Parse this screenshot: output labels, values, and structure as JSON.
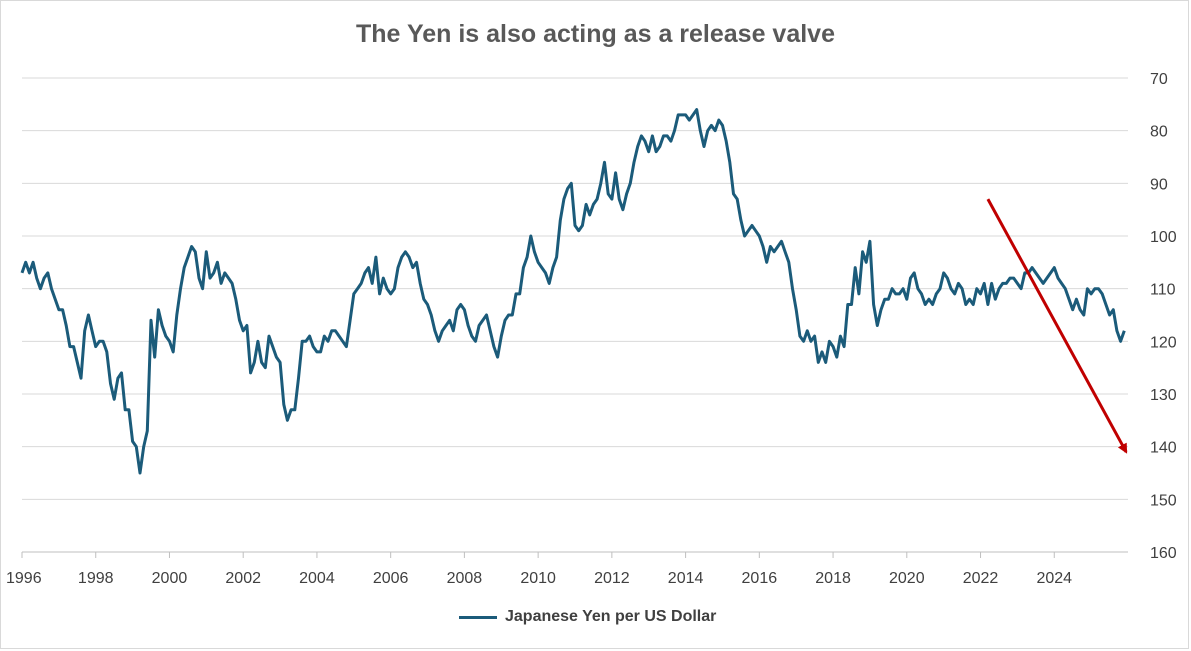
{
  "chart_data": {
    "type": "line",
    "title": "The Yen is also acting as a release valve",
    "xlabel": "",
    "ylabel": "",
    "y_axis_side": "right",
    "y_inverted": true,
    "ylim": [
      70,
      160
    ],
    "y_ticks": [
      70,
      80,
      90,
      100,
      110,
      120,
      130,
      140,
      150,
      160
    ],
    "xlim": [
      1996,
      2026
    ],
    "x_ticks": [
      1996,
      1998,
      2000,
      2002,
      2004,
      2006,
      2008,
      2010,
      2012,
      2014,
      2016,
      2018,
      2020,
      2022,
      2024
    ],
    "grid": "horizontal",
    "legend_position": "bottom-center",
    "series": [
      {
        "name": "Japanese Yen per US Dollar",
        "color": "#1b5b7a",
        "points": [
          [
            1996.0,
            107
          ],
          [
            1996.1,
            105
          ],
          [
            1996.2,
            107
          ],
          [
            1996.3,
            105
          ],
          [
            1996.4,
            108
          ],
          [
            1996.5,
            110
          ],
          [
            1996.6,
            108
          ],
          [
            1996.7,
            107
          ],
          [
            1996.8,
            110
          ],
          [
            1996.9,
            112
          ],
          [
            1997.0,
            114
          ],
          [
            1997.1,
            114
          ],
          [
            1997.2,
            117
          ],
          [
            1997.3,
            121
          ],
          [
            1997.4,
            121
          ],
          [
            1997.5,
            124
          ],
          [
            1997.6,
            127
          ],
          [
            1997.7,
            118
          ],
          [
            1997.8,
            115
          ],
          [
            1997.9,
            118
          ],
          [
            1998.0,
            121
          ],
          [
            1998.1,
            120
          ],
          [
            1998.2,
            120
          ],
          [
            1998.3,
            122
          ],
          [
            1998.4,
            128
          ],
          [
            1998.5,
            131
          ],
          [
            1998.6,
            127
          ],
          [
            1998.7,
            126
          ],
          [
            1998.8,
            133
          ],
          [
            1998.9,
            133
          ],
          [
            1999.0,
            139
          ],
          [
            1999.1,
            140
          ],
          [
            1999.2,
            145
          ],
          [
            1999.3,
            140
          ],
          [
            1999.4,
            137
          ],
          [
            1999.5,
            116
          ],
          [
            1999.6,
            123
          ],
          [
            1999.7,
            114
          ],
          [
            1999.8,
            117
          ],
          [
            1999.9,
            119
          ],
          [
            2000.0,
            120
          ],
          [
            2000.1,
            122
          ],
          [
            2000.2,
            115
          ],
          [
            2000.3,
            110
          ],
          [
            2000.4,
            106
          ],
          [
            2000.5,
            104
          ],
          [
            2000.6,
            102
          ],
          [
            2000.7,
            103
          ],
          [
            2000.8,
            108
          ],
          [
            2000.9,
            110
          ],
          [
            2001.0,
            103
          ],
          [
            2001.1,
            108
          ],
          [
            2001.2,
            107
          ],
          [
            2001.3,
            105
          ],
          [
            2001.4,
            109
          ],
          [
            2001.5,
            107
          ],
          [
            2001.6,
            108
          ],
          [
            2001.7,
            109
          ],
          [
            2001.8,
            112
          ],
          [
            2001.9,
            116
          ],
          [
            2002.0,
            118
          ],
          [
            2002.1,
            117
          ],
          [
            2002.2,
            126
          ],
          [
            2002.3,
            124
          ],
          [
            2002.4,
            120
          ],
          [
            2002.5,
            124
          ],
          [
            2002.6,
            125
          ],
          [
            2002.7,
            119
          ],
          [
            2002.8,
            121
          ],
          [
            2002.9,
            123
          ],
          [
            2003.0,
            124
          ],
          [
            2003.1,
            132
          ],
          [
            2003.2,
            135
          ],
          [
            2003.3,
            133
          ],
          [
            2003.4,
            133
          ],
          [
            2003.5,
            127
          ],
          [
            2003.6,
            120
          ],
          [
            2003.7,
            120
          ],
          [
            2003.8,
            119
          ],
          [
            2003.9,
            121
          ],
          [
            2004.0,
            122
          ],
          [
            2004.1,
            122
          ],
          [
            2004.2,
            119
          ],
          [
            2004.3,
            120
          ],
          [
            2004.4,
            118
          ],
          [
            2004.5,
            118
          ],
          [
            2004.6,
            119
          ],
          [
            2004.7,
            120
          ],
          [
            2004.8,
            121
          ],
          [
            2004.9,
            116
          ],
          [
            2005.0,
            111
          ],
          [
            2005.1,
            110
          ],
          [
            2005.2,
            109
          ],
          [
            2005.3,
            107
          ],
          [
            2005.4,
            106
          ],
          [
            2005.5,
            109
          ],
          [
            2005.6,
            104
          ],
          [
            2005.7,
            111
          ],
          [
            2005.8,
            108
          ],
          [
            2005.9,
            110
          ],
          [
            2006.0,
            111
          ],
          [
            2006.1,
            110
          ],
          [
            2006.2,
            106
          ],
          [
            2006.3,
            104
          ],
          [
            2006.4,
            103
          ],
          [
            2006.5,
            104
          ],
          [
            2006.6,
            106
          ],
          [
            2006.7,
            105
          ],
          [
            2006.8,
            109
          ],
          [
            2006.9,
            112
          ],
          [
            2007.0,
            113
          ],
          [
            2007.1,
            115
          ],
          [
            2007.2,
            118
          ],
          [
            2007.3,
            120
          ],
          [
            2007.4,
            118
          ],
          [
            2007.5,
            117
          ],
          [
            2007.6,
            116
          ],
          [
            2007.7,
            118
          ],
          [
            2007.8,
            114
          ],
          [
            2007.9,
            113
          ],
          [
            2008.0,
            114
          ],
          [
            2008.1,
            117
          ],
          [
            2008.2,
            119
          ],
          [
            2008.3,
            120
          ],
          [
            2008.4,
            117
          ],
          [
            2008.5,
            116
          ],
          [
            2008.6,
            115
          ],
          [
            2008.7,
            118
          ],
          [
            2008.8,
            121
          ],
          [
            2008.9,
            123
          ],
          [
            2009.0,
            119
          ],
          [
            2009.1,
            116
          ],
          [
            2009.2,
            115
          ],
          [
            2009.3,
            115
          ],
          [
            2009.4,
            111
          ],
          [
            2009.5,
            111
          ],
          [
            2009.6,
            106
          ],
          [
            2009.7,
            104
          ],
          [
            2009.8,
            100
          ],
          [
            2009.9,
            103
          ],
          [
            2010.0,
            105
          ],
          [
            2010.1,
            106
          ],
          [
            2010.2,
            107
          ],
          [
            2010.3,
            109
          ],
          [
            2010.4,
            106
          ],
          [
            2010.5,
            104
          ],
          [
            2010.6,
            97
          ],
          [
            2010.7,
            93
          ],
          [
            2010.8,
            91
          ],
          [
            2010.9,
            90
          ],
          [
            2011.0,
            98
          ],
          [
            2011.1,
            99
          ],
          [
            2011.2,
            98
          ],
          [
            2011.3,
            94
          ],
          [
            2011.4,
            96
          ],
          [
            2011.5,
            94
          ],
          [
            2011.6,
            93
          ],
          [
            2011.7,
            90
          ],
          [
            2011.8,
            86
          ],
          [
            2011.9,
            92
          ],
          [
            2012.0,
            93
          ],
          [
            2012.1,
            88
          ],
          [
            2012.2,
            93
          ],
          [
            2012.3,
            95
          ],
          [
            2012.4,
            92
          ],
          [
            2012.5,
            90
          ],
          [
            2012.6,
            86
          ],
          [
            2012.7,
            83
          ],
          [
            2012.8,
            81
          ],
          [
            2012.9,
            82
          ],
          [
            2013.0,
            84
          ],
          [
            2013.1,
            81
          ],
          [
            2013.2,
            84
          ],
          [
            2013.3,
            83
          ],
          [
            2013.4,
            81
          ],
          [
            2013.5,
            81
          ],
          [
            2013.6,
            82
          ],
          [
            2013.7,
            80
          ],
          [
            2013.8,
            77
          ],
          [
            2013.9,
            77
          ],
          [
            2014.0,
            77
          ],
          [
            2014.1,
            78
          ],
          [
            2014.2,
            77
          ],
          [
            2014.3,
            76
          ],
          [
            2014.4,
            80
          ],
          [
            2014.5,
            83
          ],
          [
            2014.6,
            80
          ],
          [
            2014.7,
            79
          ],
          [
            2014.8,
            80
          ],
          [
            2014.9,
            78
          ],
          [
            2015.0,
            79
          ],
          [
            2015.1,
            82
          ],
          [
            2015.2,
            86
          ],
          [
            2015.3,
            92
          ],
          [
            2015.4,
            93
          ],
          [
            2015.5,
            97
          ],
          [
            2015.6,
            100
          ],
          [
            2015.7,
            99
          ],
          [
            2015.8,
            98
          ],
          [
            2015.9,
            99
          ],
          [
            2016.0,
            100
          ],
          [
            2016.1,
            102
          ],
          [
            2016.2,
            105
          ],
          [
            2016.3,
            102
          ],
          [
            2016.4,
            103
          ],
          [
            2016.5,
            102
          ],
          [
            2016.6,
            101
          ],
          [
            2016.7,
            103
          ],
          [
            2016.8,
            105
          ],
          [
            2016.9,
            110
          ],
          [
            2017.0,
            114
          ],
          [
            2017.1,
            119
          ],
          [
            2017.2,
            120
          ],
          [
            2017.3,
            118
          ],
          [
            2017.4,
            120
          ],
          [
            2017.5,
            119
          ],
          [
            2017.6,
            124
          ],
          [
            2017.7,
            122
          ],
          [
            2017.8,
            124
          ],
          [
            2017.9,
            120
          ],
          [
            2018.0,
            121
          ],
          [
            2018.1,
            123
          ],
          [
            2018.2,
            119
          ],
          [
            2018.3,
            121
          ],
          [
            2018.4,
            113
          ],
          [
            2018.5,
            113
          ],
          [
            2018.6,
            106
          ],
          [
            2018.7,
            111
          ],
          [
            2018.8,
            103
          ],
          [
            2018.9,
            105
          ],
          [
            2019.0,
            101
          ],
          [
            2019.1,
            113
          ],
          [
            2019.2,
            117
          ],
          [
            2019.3,
            114
          ],
          [
            2019.4,
            112
          ],
          [
            2019.5,
            112
          ],
          [
            2019.6,
            110
          ],
          [
            2019.7,
            111
          ],
          [
            2019.8,
            111
          ],
          [
            2019.9,
            110
          ],
          [
            2020.0,
            112
          ],
          [
            2020.1,
            108
          ],
          [
            2020.2,
            107
          ],
          [
            2020.3,
            110
          ],
          [
            2020.4,
            111
          ],
          [
            2020.5,
            113
          ],
          [
            2020.6,
            112
          ],
          [
            2020.7,
            113
          ],
          [
            2020.8,
            111
          ],
          [
            2020.9,
            110
          ],
          [
            2021.0,
            107
          ],
          [
            2021.1,
            108
          ],
          [
            2021.2,
            110
          ],
          [
            2021.3,
            111
          ],
          [
            2021.4,
            109
          ],
          [
            2021.5,
            110
          ],
          [
            2021.6,
            113
          ],
          [
            2021.7,
            112
          ],
          [
            2021.8,
            113
          ],
          [
            2021.9,
            110
          ],
          [
            2022.0,
            111
          ],
          [
            2022.1,
            109
          ],
          [
            2022.2,
            113
          ],
          [
            2022.3,
            109
          ],
          [
            2022.4,
            112
          ],
          [
            2022.5,
            110
          ],
          [
            2022.6,
            109
          ],
          [
            2022.7,
            109
          ],
          [
            2022.8,
            108
          ],
          [
            2022.9,
            108
          ],
          [
            2023.0,
            109
          ],
          [
            2023.1,
            110
          ],
          [
            2023.2,
            107
          ],
          [
            2023.3,
            107
          ],
          [
            2023.4,
            106
          ],
          [
            2023.5,
            107
          ],
          [
            2023.6,
            108
          ],
          [
            2023.7,
            109
          ],
          [
            2023.8,
            108
          ],
          [
            2023.9,
            107
          ],
          [
            2024.0,
            106
          ],
          [
            2024.1,
            108
          ],
          [
            2024.2,
            109
          ],
          [
            2024.3,
            110
          ],
          [
            2024.4,
            112
          ],
          [
            2024.5,
            114
          ],
          [
            2024.6,
            112
          ],
          [
            2024.7,
            114
          ],
          [
            2024.8,
            115
          ],
          [
            2024.9,
            110
          ],
          [
            2025.0,
            111
          ],
          [
            2025.1,
            110
          ],
          [
            2025.2,
            110
          ],
          [
            2025.3,
            111
          ],
          [
            2025.4,
            113
          ],
          [
            2025.5,
            115
          ],
          [
            2025.6,
            114
          ],
          [
            2025.7,
            118
          ],
          [
            2025.8,
            120
          ],
          [
            2025.9,
            118
          ]
        ]
      }
    ],
    "annotations": [
      {
        "type": "arrow",
        "color": "#c00000",
        "from": [
          2022.2,
          93
        ],
        "to": [
          2025.95,
          141
        ]
      }
    ]
  }
}
